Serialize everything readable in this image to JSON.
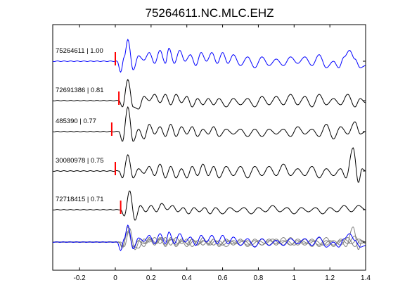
{
  "chart_data": {
    "type": "line",
    "title": "75264611.NC.MLC.EHZ",
    "xlabel": "",
    "ylabel": "",
    "xlim": [
      -0.35,
      1.4
    ],
    "x_ticks": [
      "-0.2",
      "0",
      "0.2",
      "0.4",
      "0.6",
      "0.8",
      "1",
      "1.2",
      "1.4"
    ],
    "x_tick_values": [
      -0.2,
      0,
      0.2,
      0.4,
      0.6,
      0.8,
      1.0,
      1.2,
      1.4
    ],
    "grid": false,
    "colors": {
      "primary_trace": "#0000ff",
      "other_trace": "#000000",
      "stack_trace": "#808080",
      "pick_marker": "#ff0000"
    },
    "traces": [
      {
        "label": "75264611 | 1.00",
        "id": "75264611",
        "correlation": 1.0,
        "pick_time": 0.0,
        "color": "#0000ff",
        "onset": 0.01,
        "peaks": [
          [
            0.03,
            -0.5
          ],
          [
            0.05,
            0.2
          ],
          [
            0.07,
            1.0
          ],
          [
            0.1,
            -0.4
          ],
          [
            0.13,
            0.25
          ],
          [
            0.16,
            0.05
          ],
          [
            0.19,
            0.4
          ],
          [
            0.22,
            -0.1
          ],
          [
            0.25,
            0.5
          ],
          [
            0.28,
            -0.1
          ],
          [
            0.3,
            0.6
          ],
          [
            0.33,
            -0.1
          ],
          [
            0.36,
            0.5
          ],
          [
            0.39,
            0.0
          ],
          [
            0.42,
            0.3
          ],
          [
            0.45,
            -0.2
          ],
          [
            0.48,
            0.4
          ],
          [
            0.51,
            0.0
          ],
          [
            0.54,
            0.4
          ],
          [
            0.57,
            -0.1
          ],
          [
            0.6,
            0.4
          ],
          [
            0.63,
            -0.1
          ],
          [
            0.66,
            0.3
          ],
          [
            0.7,
            -0.2
          ],
          [
            0.74,
            0.2
          ],
          [
            0.78,
            -0.3
          ],
          [
            0.82,
            0.2
          ],
          [
            0.86,
            -0.2
          ],
          [
            0.9,
            0.1
          ],
          [
            0.94,
            -0.2
          ],
          [
            0.98,
            0.2
          ],
          [
            1.02,
            -0.1
          ],
          [
            1.06,
            0.2
          ],
          [
            1.1,
            -0.2
          ],
          [
            1.14,
            0.3
          ],
          [
            1.18,
            -0.3
          ],
          [
            1.22,
            0.0
          ],
          [
            1.25,
            -0.3
          ],
          [
            1.28,
            0.2
          ],
          [
            1.31,
            0.5
          ],
          [
            1.34,
            0.1
          ],
          [
            1.37,
            -0.3
          ],
          [
            1.4,
            -0.2
          ]
        ]
      },
      {
        "label": "72691386 | 0.81",
        "id": "72691386",
        "correlation": 0.81,
        "pick_time": 0.02,
        "color": "#000000",
        "onset": 0.02,
        "peaks": [
          [
            0.04,
            -0.3
          ],
          [
            0.07,
            1.0
          ],
          [
            0.1,
            -0.3
          ],
          [
            0.13,
            -0.4
          ],
          [
            0.16,
            0.2
          ],
          [
            0.19,
            0.0
          ],
          [
            0.22,
            0.3
          ],
          [
            0.25,
            -0.1
          ],
          [
            0.28,
            0.3
          ],
          [
            0.31,
            -0.2
          ],
          [
            0.34,
            0.3
          ],
          [
            0.37,
            -0.1
          ],
          [
            0.4,
            0.2
          ],
          [
            0.43,
            -0.3
          ],
          [
            0.46,
            0.1
          ],
          [
            0.49,
            -0.2
          ],
          [
            0.52,
            0.1
          ],
          [
            0.55,
            -0.2
          ],
          [
            0.58,
            0.1
          ],
          [
            0.62,
            -0.3
          ],
          [
            0.66,
            0.1
          ],
          [
            0.7,
            -0.2
          ],
          [
            0.74,
            0.1
          ],
          [
            0.78,
            -0.3
          ],
          [
            0.82,
            0.2
          ],
          [
            0.86,
            -0.2
          ],
          [
            0.9,
            0.2
          ],
          [
            0.94,
            -0.2
          ],
          [
            0.98,
            0.3
          ],
          [
            1.02,
            -0.2
          ],
          [
            1.06,
            0.2
          ],
          [
            1.1,
            -0.3
          ],
          [
            1.14,
            0.3
          ],
          [
            1.18,
            -0.2
          ],
          [
            1.22,
            0.1
          ],
          [
            1.26,
            -0.2
          ],
          [
            1.3,
            0.3
          ],
          [
            1.34,
            -0.3
          ],
          [
            1.37,
            0.1
          ],
          [
            1.4,
            -0.1
          ]
        ]
      },
      {
        "label": "485390 | 0.77",
        "id": "485390",
        "correlation": 0.77,
        "pick_time": -0.02,
        "color": "#000000",
        "onset": 0.02,
        "peaks": [
          [
            0.04,
            -0.4
          ],
          [
            0.07,
            1.0
          ],
          [
            0.1,
            -0.4
          ],
          [
            0.13,
            0.1
          ],
          [
            0.16,
            -0.3
          ],
          [
            0.19,
            0.3
          ],
          [
            0.22,
            -0.1
          ],
          [
            0.25,
            0.2
          ],
          [
            0.28,
            -0.2
          ],
          [
            0.31,
            0.3
          ],
          [
            0.34,
            -0.2
          ],
          [
            0.37,
            0.2
          ],
          [
            0.4,
            -0.1
          ],
          [
            0.43,
            0.2
          ],
          [
            0.46,
            -0.2
          ],
          [
            0.49,
            0.1
          ],
          [
            0.52,
            -0.1
          ],
          [
            0.55,
            0.2
          ],
          [
            0.58,
            -0.2
          ],
          [
            0.62,
            0.1
          ],
          [
            0.66,
            -0.1
          ],
          [
            0.7,
            0.1
          ],
          [
            0.74,
            -0.2
          ],
          [
            0.78,
            0.1
          ],
          [
            0.82,
            -0.2
          ],
          [
            0.86,
            0.1
          ],
          [
            0.9,
            -0.1
          ],
          [
            0.94,
            0.1
          ],
          [
            0.98,
            -0.2
          ],
          [
            1.02,
            0.2
          ],
          [
            1.06,
            -0.1
          ],
          [
            1.1,
            0.1
          ],
          [
            1.14,
            -0.2
          ],
          [
            1.18,
            0.3
          ],
          [
            1.22,
            -0.3
          ],
          [
            1.26,
            0.2
          ],
          [
            1.3,
            -0.1
          ],
          [
            1.34,
            0.4
          ],
          [
            1.37,
            -0.1
          ],
          [
            1.4,
            0.0
          ]
        ]
      },
      {
        "label": "30080978 | 0.75",
        "id": "30080978",
        "correlation": 0.75,
        "pick_time": 0.0,
        "color": "#000000",
        "onset": 0.02,
        "peaks": [
          [
            0.04,
            -0.3
          ],
          [
            0.07,
            0.7
          ],
          [
            0.1,
            -0.3
          ],
          [
            0.13,
            0.1
          ],
          [
            0.16,
            -0.1
          ],
          [
            0.19,
            0.2
          ],
          [
            0.22,
            -0.2
          ],
          [
            0.25,
            0.3
          ],
          [
            0.28,
            -0.3
          ],
          [
            0.31,
            0.2
          ],
          [
            0.34,
            -0.3
          ],
          [
            0.37,
            0.1
          ],
          [
            0.4,
            -0.3
          ],
          [
            0.43,
            0.2
          ],
          [
            0.46,
            -0.2
          ],
          [
            0.49,
            0.3
          ],
          [
            0.52,
            -0.2
          ],
          [
            0.55,
            0.2
          ],
          [
            0.58,
            -0.3
          ],
          [
            0.62,
            0.2
          ],
          [
            0.66,
            -0.2
          ],
          [
            0.7,
            0.2
          ],
          [
            0.74,
            -0.3
          ],
          [
            0.78,
            0.2
          ],
          [
            0.82,
            -0.2
          ],
          [
            0.86,
            0.2
          ],
          [
            0.9,
            -0.2
          ],
          [
            0.94,
            0.3
          ],
          [
            0.98,
            -0.2
          ],
          [
            1.02,
            0.1
          ],
          [
            1.06,
            -0.2
          ],
          [
            1.1,
            0.2
          ],
          [
            1.14,
            -0.3
          ],
          [
            1.18,
            0.1
          ],
          [
            1.22,
            -0.2
          ],
          [
            1.26,
            0.1
          ],
          [
            1.29,
            -0.3
          ],
          [
            1.33,
            1.0
          ],
          [
            1.36,
            -0.5
          ],
          [
            1.38,
            0.1
          ],
          [
            1.4,
            0.0
          ]
        ]
      },
      {
        "label": "72718415 | 0.71",
        "id": "72718415",
        "correlation": 0.71,
        "pick_time": 0.03,
        "color": "#000000",
        "onset": 0.03,
        "peaks": [
          [
            0.05,
            -0.3
          ],
          [
            0.08,
            0.9
          ],
          [
            0.11,
            -0.5
          ],
          [
            0.14,
            0.2
          ],
          [
            0.17,
            -0.1
          ],
          [
            0.2,
            0.2
          ],
          [
            0.23,
            -0.1
          ],
          [
            0.26,
            0.3
          ],
          [
            0.29,
            0.0
          ],
          [
            0.32,
            0.2
          ],
          [
            0.35,
            -0.1
          ],
          [
            0.38,
            0.1
          ],
          [
            0.41,
            -0.2
          ],
          [
            0.44,
            0.1
          ],
          [
            0.47,
            -0.1
          ],
          [
            0.5,
            0.1
          ],
          [
            0.53,
            -0.2
          ],
          [
            0.56,
            0.1
          ],
          [
            0.6,
            -0.2
          ],
          [
            0.64,
            0.1
          ],
          [
            0.68,
            -0.1
          ],
          [
            0.72,
            0.1
          ],
          [
            0.76,
            -0.2
          ],
          [
            0.8,
            0.1
          ],
          [
            0.84,
            -0.1
          ],
          [
            0.88,
            0.2
          ],
          [
            0.92,
            -0.1
          ],
          [
            0.96,
            0.1
          ],
          [
            1.0,
            -0.2
          ],
          [
            1.04,
            0.1
          ],
          [
            1.08,
            -0.1
          ],
          [
            1.12,
            0.1
          ],
          [
            1.16,
            -0.2
          ],
          [
            1.2,
            0.1
          ],
          [
            1.24,
            -0.1
          ],
          [
            1.28,
            0.2
          ],
          [
            1.32,
            -0.1
          ],
          [
            1.36,
            0.2
          ],
          [
            1.4,
            0.0
          ]
        ]
      }
    ],
    "stack": {
      "description_label": "",
      "colors": [
        "#808080",
        "#0000ff"
      ]
    }
  }
}
